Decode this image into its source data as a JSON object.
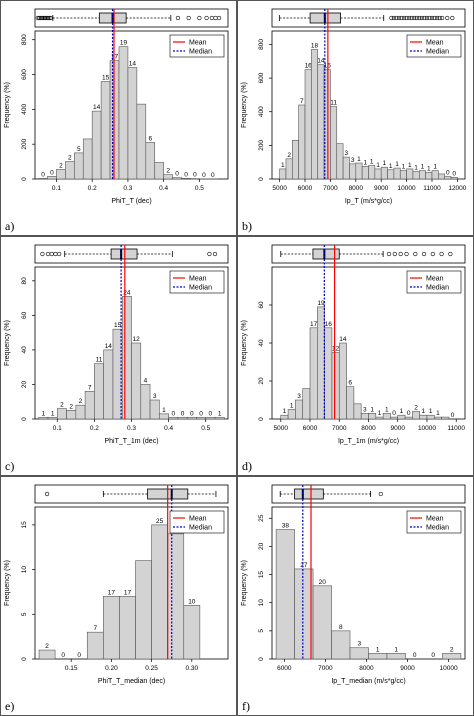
{
  "legend": {
    "mean": "Mean",
    "median": "Median"
  },
  "colors": {
    "bar_fill": "#d3d3d3",
    "bar_stroke": "#555555",
    "mean_line": "#ff0000",
    "median_line": "#0000cc"
  },
  "chart_data": [
    {
      "panel": "a)",
      "type": "bar",
      "xlabel": "PhiT_T (dec)",
      "ylabel": "Frequency (%)",
      "x_ticks": [
        "0.1",
        "0.2",
        "0.3",
        "0.4",
        "0.5"
      ],
      "x_tick_values": [
        0.1,
        0.2,
        0.3,
        0.4,
        0.5
      ],
      "xlim": [
        0.04,
        0.58
      ],
      "y_ticks": [
        "0",
        "200",
        "400",
        "600",
        "800"
      ],
      "y_tick_values": [
        0,
        200,
        400,
        600,
        800
      ],
      "ylim": [
        0,
        850
      ],
      "bin_edges": [
        0.05,
        0.075,
        0.1,
        0.125,
        0.15,
        0.175,
        0.2,
        0.225,
        0.25,
        0.275,
        0.3,
        0.325,
        0.35,
        0.375,
        0.4,
        0.425,
        0.45,
        0.475,
        0.5,
        0.525,
        0.55
      ],
      "counts": [
        3,
        15,
        55,
        100,
        150,
        230,
        390,
        560,
        680,
        760,
        640,
        430,
        210,
        95,
        25,
        8,
        4,
        2,
        1,
        1
      ],
      "labels": [
        "0",
        "0",
        "2",
        "2",
        "5",
        "",
        "14",
        "15",
        "17",
        "19",
        "14",
        "",
        "6",
        "",
        "2",
        "0",
        "0",
        "0",
        "0",
        "0"
      ],
      "mean": 0.261,
      "median": 0.257,
      "box": {
        "whisker_low": 0.09,
        "q1": 0.22,
        "median": 0.257,
        "q3": 0.295,
        "whisker_high": 0.42
      },
      "outliers_low": [
        0.048,
        0.052,
        0.056,
        0.06,
        0.064,
        0.068,
        0.072,
        0.076,
        0.08,
        0.084
      ],
      "outliers_high": [
        0.44,
        0.47,
        0.5,
        0.52,
        0.535,
        0.545,
        0.555
      ]
    },
    {
      "panel": "b)",
      "type": "bar",
      "xlabel": "Ip_T (m/s*g/cc)",
      "ylabel": "Frequency (%)",
      "x_ticks": [
        "5000",
        "6000",
        "7000",
        "8000",
        "9000",
        "10000",
        "11000",
        "12000"
      ],
      "x_tick_values": [
        5000,
        6000,
        7000,
        8000,
        9000,
        10000,
        11000,
        12000
      ],
      "xlim": [
        4700,
        12300
      ],
      "y_ticks": [
        "0",
        "200",
        "400",
        "600",
        "800"
      ],
      "y_tick_values": [
        0,
        200,
        400,
        600,
        800
      ],
      "ylim": [
        0,
        880
      ],
      "bin_edges": [
        5000,
        5250,
        5500,
        5750,
        6000,
        6250,
        6500,
        6750,
        7000,
        7250,
        7500,
        7750,
        8000,
        8250,
        8500,
        8750,
        9000,
        9250,
        9500,
        9750,
        10000,
        10250,
        10500,
        10750,
        11000,
        11250,
        11500,
        11750,
        12000
      ],
      "counts": [
        60,
        120,
        230,
        440,
        650,
        770,
        680,
        650,
        430,
        210,
        130,
        90,
        95,
        75,
        80,
        60,
        70,
        55,
        65,
        50,
        60,
        45,
        50,
        40,
        50,
        30,
        15,
        10
      ],
      "labels": [
        "1",
        "2",
        "",
        "7",
        "16",
        "18",
        "14",
        "16",
        "11",
        "",
        "3",
        "3",
        "1",
        "1",
        "1",
        "1",
        "1",
        "1",
        "1",
        "1",
        "1",
        "1",
        "1",
        "1",
        "1",
        "",
        "0",
        "0"
      ],
      "mean": 6900,
      "median": 6780,
      "box": {
        "whisker_low": 5000,
        "q1": 6200,
        "median": 6780,
        "q3": 7400,
        "whisker_high": 9100
      },
      "outliers_low": [],
      "outliers_high": [
        9400,
        9500,
        9600,
        9700,
        9800,
        9900,
        10000,
        10100,
        10200,
        10300,
        10400,
        10500,
        10600,
        10700,
        10800,
        10900,
        11000,
        11100,
        11200,
        11300,
        11400,
        11600,
        11800
      ]
    },
    {
      "panel": "c)",
      "type": "bar",
      "xlabel": "PhiT_T_1m (dec)",
      "ylabel": "Frequency (%)",
      "x_ticks": [
        "0.1",
        "0.2",
        "0.3",
        "0.4",
        "0.5"
      ],
      "x_tick_values": [
        0.1,
        0.2,
        0.3,
        0.4,
        0.5
      ],
      "xlim": [
        0.04,
        0.56
      ],
      "y_ticks": [
        "0",
        "20",
        "40",
        "60",
        "80"
      ],
      "y_tick_values": [
        0,
        20,
        40,
        60,
        80
      ],
      "ylim": [
        0,
        88
      ],
      "bin_edges": [
        0.05,
        0.075,
        0.1,
        0.125,
        0.15,
        0.175,
        0.2,
        0.225,
        0.25,
        0.275,
        0.3,
        0.325,
        0.35,
        0.375,
        0.4,
        0.425,
        0.45,
        0.475,
        0.5,
        0.525,
        0.55
      ],
      "counts": [
        1,
        1,
        6,
        5,
        8,
        16,
        32,
        40,
        52,
        71,
        44,
        20,
        11,
        3,
        1,
        1,
        1,
        1,
        1,
        1
      ],
      "labels": [
        "1",
        "1",
        "2",
        "2",
        "2",
        "7",
        "11",
        "14",
        "15",
        "24",
        "12",
        "4",
        "3",
        "1",
        "0",
        "0",
        "0",
        "0",
        "0",
        "1"
      ],
      "mean": 0.282,
      "median": 0.272,
      "box": {
        "whisker_low": 0.12,
        "q1": 0.245,
        "median": 0.272,
        "q3": 0.315,
        "whisker_high": 0.41
      },
      "outliers_low": [
        0.06,
        0.075,
        0.085,
        0.095,
        0.105
      ],
      "outliers_high": [
        0.51,
        0.525
      ]
    },
    {
      "panel": "d)",
      "type": "bar",
      "xlabel": "Ip_T_1m (m/s*g/cc)",
      "ylabel": "Frequency (%)",
      "x_ticks": [
        "5000",
        "6000",
        "7000",
        "8000",
        "9000",
        "10000",
        "11000"
      ],
      "x_tick_values": [
        5000,
        6000,
        7000,
        8000,
        9000,
        10000,
        11000
      ],
      "xlim": [
        4700,
        11300
      ],
      "y_ticks": [
        "0",
        "20",
        "40",
        "60"
      ],
      "y_tick_values": [
        0,
        20,
        40,
        60
      ],
      "ylim": [
        0,
        80
      ],
      "bin_edges": [
        5000,
        5250,
        5500,
        5750,
        6000,
        6250,
        6500,
        6750,
        7000,
        7250,
        7500,
        7750,
        8000,
        8250,
        8500,
        8750,
        9000,
        9250,
        9500,
        9750,
        10000,
        10250,
        10500,
        10750,
        11000
      ],
      "counts": [
        2,
        5,
        10,
        16,
        48,
        59,
        48,
        35,
        40,
        17,
        8,
        3,
        3,
        1,
        3,
        1,
        2,
        1,
        4,
        2,
        2,
        1,
        1,
        0
      ],
      "labels": [
        "1",
        "1",
        "3",
        "",
        "17",
        "19",
        "16",
        "12",
        "14",
        "6",
        "",
        "3",
        "1",
        "1",
        "1",
        "0",
        "1",
        "0",
        "2",
        "1",
        "1",
        "1",
        "",
        "0"
      ],
      "mean": 6840,
      "median": 6490,
      "box": {
        "whisker_low": 5000,
        "q1": 6100,
        "median": 6490,
        "q3": 7000,
        "whisker_high": 8500
      },
      "outliers_low": [],
      "outliers_high": [
        8700,
        8900,
        9100,
        9300,
        9600,
        9900,
        10200,
        10500,
        10800
      ]
    },
    {
      "panel": "e)",
      "type": "bar",
      "xlabel": "PhiT_T_median (dec)",
      "ylabel": "Frequency (%)",
      "x_ticks": [
        "0.15",
        "0.20",
        "0.25",
        "0.30"
      ],
      "x_tick_values": [
        0.15,
        0.2,
        0.25,
        0.3
      ],
      "xlim": [
        0.105,
        0.345
      ],
      "y_ticks": [
        "0",
        "5",
        "10",
        "15"
      ],
      "y_tick_values": [
        0,
        5,
        10,
        15
      ],
      "ylim": [
        0,
        17
      ],
      "bin_edges": [
        0.11,
        0.13,
        0.15,
        0.17,
        0.19,
        0.21,
        0.23,
        0.25,
        0.27,
        0.29,
        0.31,
        0.33
      ],
      "counts": [
        1,
        0,
        0,
        3,
        7,
        7,
        11,
        15,
        14,
        6,
        0
      ],
      "labels": [
        "2",
        "0",
        "0",
        "7",
        "17",
        "17",
        "",
        "25",
        "23",
        "10",
        ""
      ],
      "mean": 0.27,
      "median": 0.275,
      "box": {
        "whisker_low": 0.19,
        "q1": 0.245,
        "median": 0.275,
        "q3": 0.295,
        "whisker_high": 0.33
      },
      "outliers_low": [
        0.12
      ],
      "outliers_high": []
    },
    {
      "panel": "f)",
      "type": "bar",
      "xlabel": "Ip_T_median (m/s*g/cc)",
      "ylabel": "Frequency (%)",
      "x_ticks": [
        "6000",
        "7000",
        "8000",
        "9000",
        "10000"
      ],
      "x_tick_values": [
        6000,
        7000,
        8000,
        9000,
        10000
      ],
      "xlim": [
        5700,
        10400
      ],
      "y_ticks": [
        "0",
        "5",
        "10",
        "15",
        "20",
        "25"
      ],
      "y_tick_values": [
        0,
        5,
        10,
        15,
        20,
        25
      ],
      "ylim": [
        0,
        27
      ],
      "bin_edges": [
        5800,
        6250,
        6700,
        7150,
        7600,
        8050,
        8500,
        8950,
        9400,
        9850,
        10300
      ],
      "counts": [
        23,
        16,
        13,
        5,
        2,
        1,
        1,
        0,
        0,
        1
      ],
      "labels": [
        "38",
        "27",
        "20",
        "8",
        "3",
        "1",
        "1",
        "0",
        "0",
        "2"
      ],
      "mean": 6650,
      "median": 6450,
      "box": {
        "whisker_low": 5900,
        "q1": 6250,
        "median": 6450,
        "q3": 6950,
        "whisker_high": 8100
      },
      "outliers_low": [],
      "outliers_high": [
        8350
      ]
    }
  ]
}
